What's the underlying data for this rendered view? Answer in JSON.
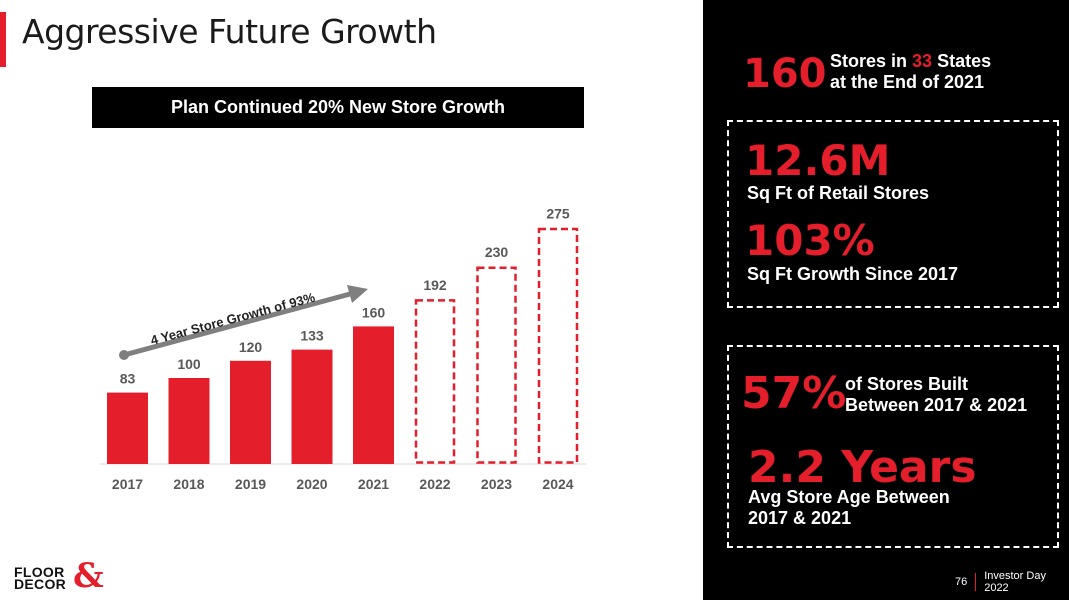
{
  "slide": {
    "title": "Aggressive Future Growth",
    "banner": "Plan Continued 20% New Store Growth",
    "growth_annotation": "4 Year Store Growth of 93%"
  },
  "chart_data": {
    "type": "bar",
    "title": "Plan Continued 20% New Store Growth",
    "xlabel": "",
    "ylabel": "",
    "categories": [
      "2017",
      "2018",
      "2019",
      "2020",
      "2021",
      "2022",
      "2023",
      "2024"
    ],
    "values": [
      83,
      100,
      120,
      133,
      160,
      192,
      230,
      275
    ],
    "projected": [
      false,
      false,
      false,
      false,
      false,
      true,
      true,
      true
    ],
    "ylim": [
      0,
      290
    ],
    "grid": false,
    "colors": {
      "actual": "#e41e2b",
      "projected_outline": "#e41e2b",
      "arrow": "#7f7f7f"
    },
    "annotations": [
      {
        "text": "4 Year Store Growth of 93%",
        "from": "2017",
        "to": "2021"
      }
    ]
  },
  "stats": {
    "stores_num": "160",
    "stores_pre": "Stores in ",
    "states_num": "33",
    "stores_post": " States",
    "stores_line2": "at the End of 2021",
    "sqft_num": "12.6M",
    "sqft_label": "Sq Ft of Retail Stores",
    "growth_num": "103%",
    "growth_label": "Sq Ft Growth Since 2017",
    "built_num": "57%",
    "built_line1": "of Stores Built",
    "built_line2": "Between 2017 & 2021",
    "age_num": "2.2 Years",
    "age_line1": "Avg Store Age Between",
    "age_line2": "2017 & 2021"
  },
  "footer": {
    "page": "76",
    "event": "Investor Day 2022"
  },
  "logo": {
    "line1": "FLOOR",
    "line2": "DECOR",
    "amp": "&"
  }
}
